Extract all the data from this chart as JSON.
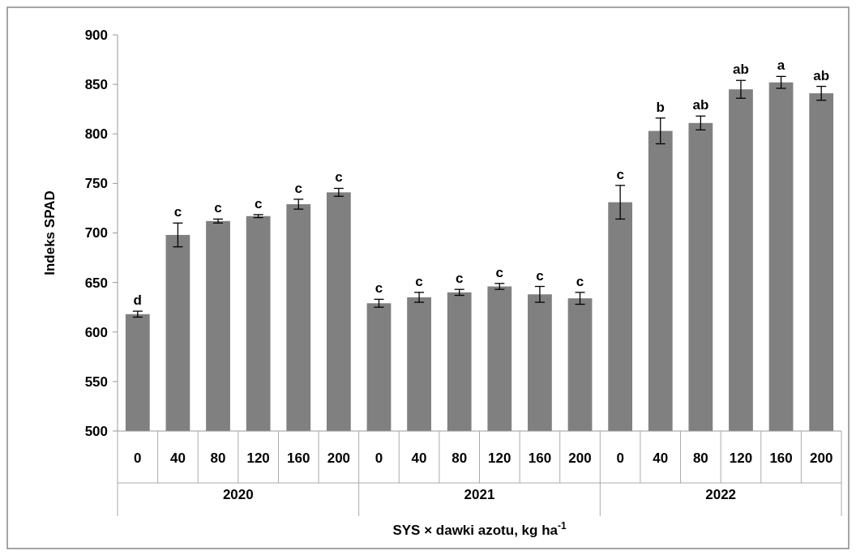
{
  "chart_data": {
    "type": "bar",
    "ylabel": "Indeks SPAD",
    "xlabel": "SYS × dawki azotu, kg ha$^{-1}$",
    "categories": [
      "0",
      "40",
      "80",
      "120",
      "160",
      "200",
      "0",
      "40",
      "80",
      "120",
      "160",
      "200",
      "0",
      "40",
      "80",
      "120",
      "160",
      "200"
    ],
    "values": [
      618,
      698,
      712,
      717,
      729,
      741,
      629,
      635,
      640,
      646,
      638,
      634,
      731,
      803,
      811,
      845,
      852,
      841
    ],
    "errors": [
      3,
      12,
      2,
      1.5,
      5,
      4,
      4,
      5,
      3,
      3,
      8,
      6,
      17,
      13,
      7,
      9,
      6,
      7
    ],
    "value_labels": [
      "d",
      "c",
      "c",
      "c",
      "c",
      "c",
      "c",
      "c",
      "c",
      "c",
      "c",
      "c",
      "c",
      "b",
      "ab",
      "ab",
      "a",
      "ab"
    ],
    "color": "#808080",
    "ylim": [
      500,
      900
    ],
    "yticks": [
      500,
      550,
      600,
      650,
      700,
      750,
      800,
      850,
      900
    ],
    "grid": false,
    "annotations": [
      "2020",
      "2021",
      "2022"
    ]
  }
}
